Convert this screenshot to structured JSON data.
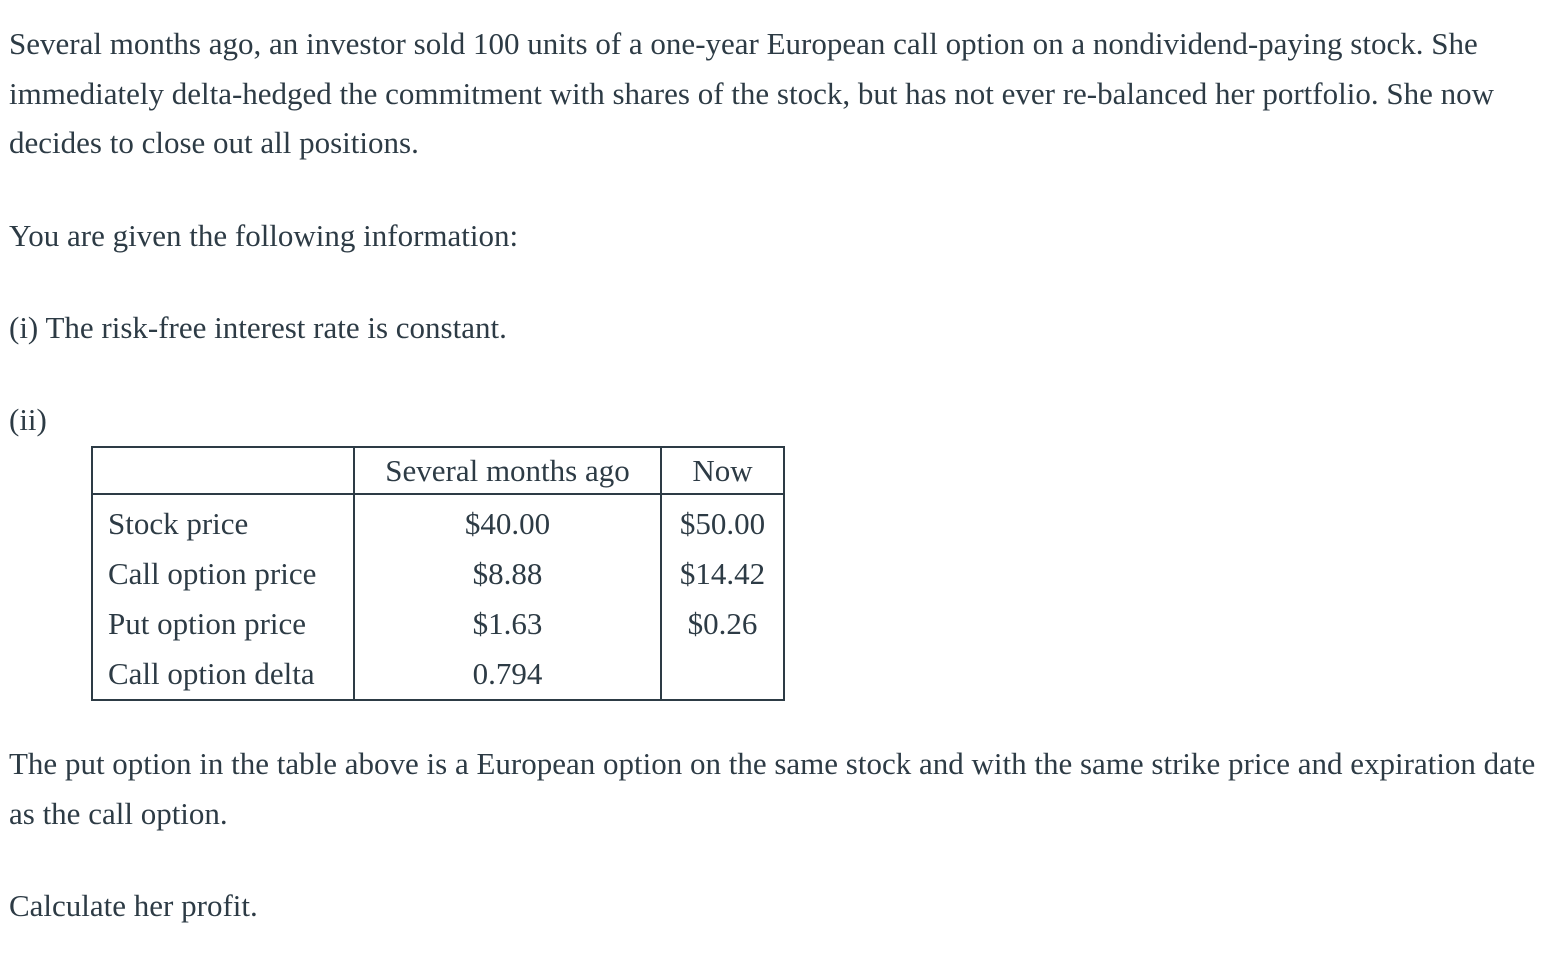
{
  "intro": "Several months ago, an investor sold 100 units of a one-year European call option on a nondividend-paying stock. She immediately delta-hedged the commitment with shares of the stock, but has not ever re-balanced her portfolio. She now decides to close out all positions.",
  "given": "You are given the following information:",
  "item_i": "(i) The risk-free interest rate is constant.",
  "item_ii": "(ii)",
  "table": {
    "headers": [
      "",
      "Several months ago",
      "Now"
    ],
    "rows": [
      {
        "label": "Stock price",
        "ago": "$40.00",
        "now": "$50.00"
      },
      {
        "label": "Call option price",
        "ago": "$8.88",
        "now": "$14.42"
      },
      {
        "label": "Put option price",
        "ago": "$1.63",
        "now": "$0.26"
      },
      {
        "label": "Call option delta",
        "ago": "0.794",
        "now": ""
      }
    ]
  },
  "note": "The put option in the table above is a European option on the same stock and with the same strike price and expiration date as the call option.",
  "question": "Calculate her profit."
}
